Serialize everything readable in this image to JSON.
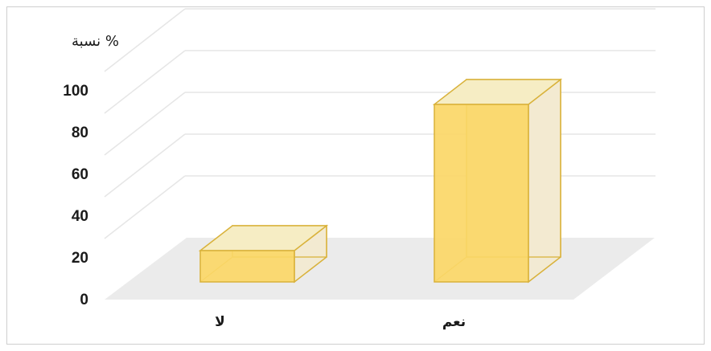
{
  "chart_data": {
    "type": "bar",
    "style": "3d",
    "title": "",
    "ylabel": "نسبة %",
    "xlabel": "",
    "categories": [
      "لا",
      "نعم"
    ],
    "values": [
      15,
      85
    ],
    "ylim": [
      0,
      100
    ],
    "yticks": [
      0,
      20,
      40,
      60,
      80,
      100
    ],
    "grid": true,
    "legend": "none",
    "colors": {
      "bar_front": "#fbd767",
      "bar_stroke": "#d9b23b",
      "bar_top": "#f6edc4",
      "bar_side": "#f3ead0",
      "floor": "#ebebeb",
      "grid": "#e6e6e6"
    }
  }
}
